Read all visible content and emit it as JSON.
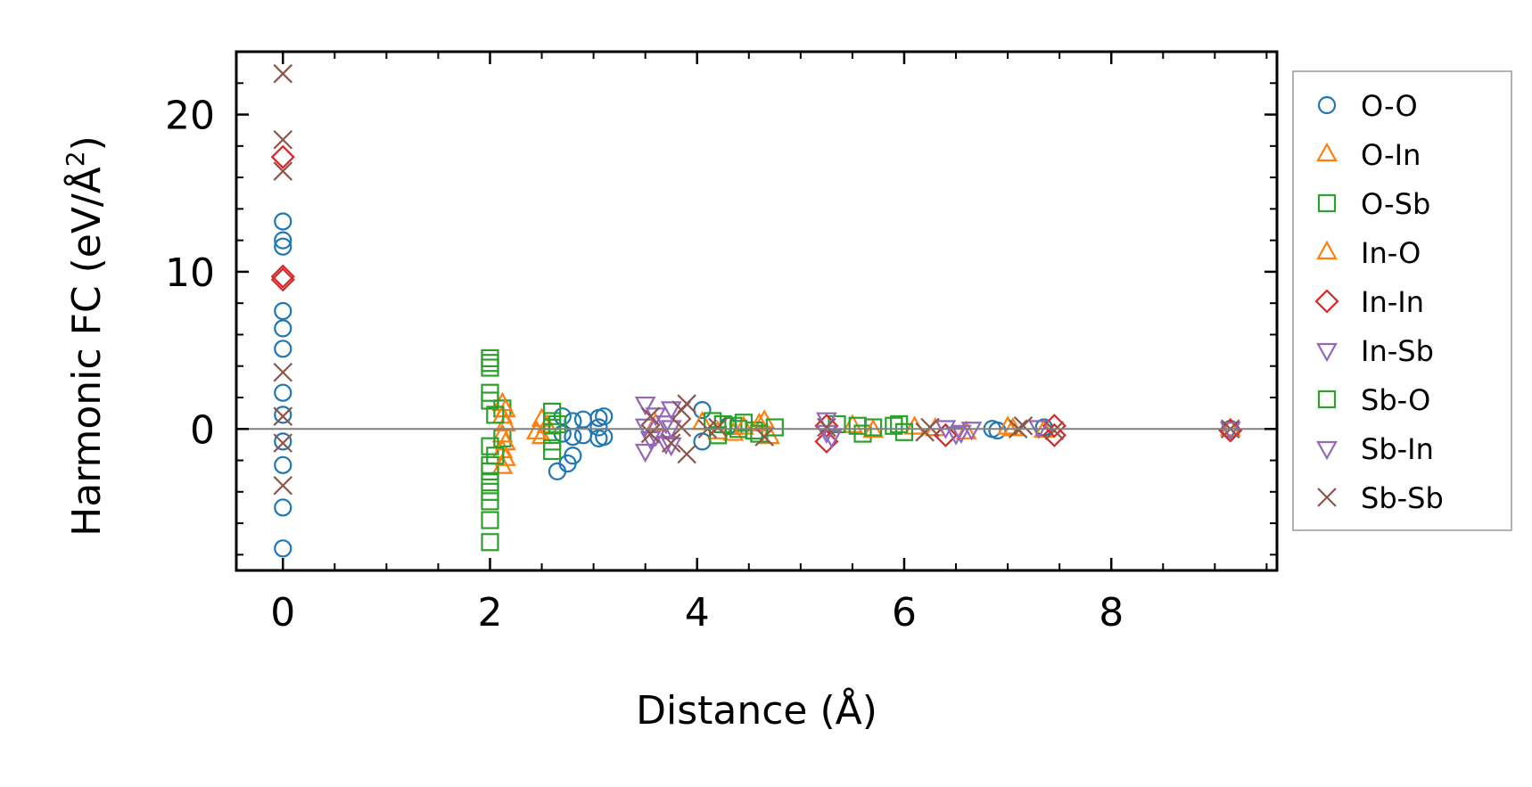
{
  "chart_data": {
    "type": "scatter",
    "xlabel": "Distance (Å)",
    "ylabel": "Harmonic FC (eV/Å",
    "ylabel_sup": "2",
    "ylabel_tail": ")",
    "xlim": [
      -0.45,
      9.6
    ],
    "ylim": [
      -9.0,
      24.0
    ],
    "xticks": [
      0,
      2,
      4,
      6,
      8
    ],
    "xtick_labels": [
      "0",
      "2",
      "4",
      "6",
      "8"
    ],
    "yticks": [
      0,
      10,
      20
    ],
    "ytick_labels": [
      "0",
      "10",
      "20"
    ],
    "zero_line": true,
    "grid": false,
    "legend_position": "right, outside",
    "series": [
      {
        "name": "O-O",
        "marker": "circle",
        "color": "#1f77b4",
        "points": [
          [
            0,
            13.2
          ],
          [
            0,
            12.0
          ],
          [
            0,
            11.6
          ],
          [
            0,
            7.5
          ],
          [
            0,
            6.4
          ],
          [
            0,
            5.1
          ],
          [
            0,
            2.3
          ],
          [
            0,
            0.9
          ],
          [
            0,
            -0.8
          ],
          [
            0,
            -2.3
          ],
          [
            0,
            -5.0
          ],
          [
            0,
            -7.6
          ],
          [
            2.7,
            0.8
          ],
          [
            2.7,
            -0.3
          ],
          [
            2.65,
            -2.7
          ],
          [
            2.8,
            0.5
          ],
          [
            2.8,
            -0.5
          ],
          [
            2.8,
            -1.7
          ],
          [
            2.75,
            -2.2
          ],
          [
            2.9,
            0.6
          ],
          [
            2.9,
            -0.4
          ],
          [
            3.05,
            0.7
          ],
          [
            3.05,
            0.1
          ],
          [
            3.05,
            -0.6
          ],
          [
            3.1,
            0.8
          ],
          [
            3.1,
            -0.5
          ],
          [
            4.05,
            1.2
          ],
          [
            4.05,
            -0.8
          ],
          [
            4.3,
            0.2
          ],
          [
            6.85,
            0.0
          ],
          [
            6.9,
            -0.1
          ],
          [
            7.35,
            0.1
          ],
          [
            9.15,
            0.0
          ]
        ]
      },
      {
        "name": "O-In",
        "marker": "triangle-up",
        "color": "#ff7f0e",
        "points": [
          [
            2.12,
            1.6
          ],
          [
            2.12,
            0.8
          ],
          [
            2.12,
            -0.4
          ],
          [
            2.12,
            -1.4
          ],
          [
            2.12,
            -2.4
          ],
          [
            2.5,
            0.6
          ],
          [
            2.5,
            -0.5
          ],
          [
            2.55,
            0.2
          ],
          [
            3.6,
            0.3
          ],
          [
            4.05,
            0.4
          ],
          [
            4.35,
            -0.3
          ],
          [
            4.65,
            0.5
          ],
          [
            4.7,
            -0.5
          ],
          [
            5.5,
            0.2
          ],
          [
            6.1,
            0.1
          ],
          [
            6.6,
            -0.2
          ],
          [
            7.0,
            0.1
          ],
          [
            7.35,
            -0.1
          ],
          [
            9.15,
            0.0
          ]
        ]
      },
      {
        "name": "O-Sb",
        "marker": "square",
        "color": "#2ca02c",
        "points": [
          [
            2.0,
            4.5
          ],
          [
            2.0,
            4.2
          ],
          [
            2.0,
            3.9
          ],
          [
            2.0,
            2.3
          ],
          [
            2.0,
            1.8
          ],
          [
            2.0,
            -1.1
          ],
          [
            2.0,
            -2.3
          ],
          [
            2.0,
            -2.7
          ],
          [
            2.0,
            -3.4
          ],
          [
            2.0,
            -4.0
          ],
          [
            2.0,
            -4.6
          ],
          [
            2.0,
            -5.8
          ],
          [
            2.0,
            -7.2
          ],
          [
            2.12,
            1.3
          ],
          [
            2.12,
            -0.6
          ],
          [
            2.6,
            1.1
          ],
          [
            2.6,
            0.5
          ],
          [
            2.6,
            -0.2
          ],
          [
            2.6,
            -0.8
          ],
          [
            2.6,
            -1.4
          ],
          [
            4.15,
            0.5
          ],
          [
            4.25,
            0.3
          ],
          [
            4.35,
            0.2
          ],
          [
            4.45,
            0.4
          ],
          [
            4.55,
            -0.1
          ],
          [
            4.75,
            0.1
          ],
          [
            5.35,
            0.3
          ],
          [
            5.55,
            0.2
          ],
          [
            5.6,
            -0.3
          ],
          [
            5.9,
            0.2
          ],
          [
            6.0,
            -0.2
          ]
        ]
      },
      {
        "name": "In-O",
        "marker": "triangle-up",
        "color": "#ff7f0e",
        "points": [
          [
            2.15,
            1.2
          ],
          [
            2.15,
            0.3
          ],
          [
            2.15,
            -0.9
          ],
          [
            2.15,
            -1.9
          ],
          [
            2.45,
            -0.2
          ],
          [
            4.2,
            -0.2
          ],
          [
            4.45,
            0.1
          ],
          [
            4.6,
            0.3
          ],
          [
            5.7,
            -0.1
          ],
          [
            6.3,
            0.0
          ],
          [
            7.05,
            0.0
          ]
        ]
      },
      {
        "name": "In-In",
        "marker": "diamond",
        "color": "#d62728",
        "points": [
          [
            0,
            17.3
          ],
          [
            0,
            9.7
          ],
          [
            0,
            9.5
          ],
          [
            5.25,
            -0.8
          ],
          [
            5.25,
            0.2
          ],
          [
            6.4,
            -0.4
          ],
          [
            7.45,
            0.2
          ],
          [
            7.45,
            -0.4
          ],
          [
            9.15,
            -0.1
          ]
        ]
      },
      {
        "name": "In-Sb",
        "marker": "triangle-down",
        "color": "#9467bd",
        "points": [
          [
            3.5,
            1.6
          ],
          [
            3.5,
            0.2
          ],
          [
            3.5,
            -1.4
          ],
          [
            3.6,
            0.9
          ],
          [
            3.6,
            -0.4
          ],
          [
            3.75,
            1.3
          ],
          [
            3.75,
            0.1
          ],
          [
            3.75,
            -1.0
          ],
          [
            5.25,
            0.6
          ],
          [
            5.25,
            -0.2
          ],
          [
            6.4,
            0.1
          ],
          [
            6.55,
            -0.2
          ],
          [
            6.65,
            0.0
          ],
          [
            9.15,
            0.0
          ]
        ]
      },
      {
        "name": "Sb-O",
        "marker": "square",
        "color": "#2ca02c",
        "points": [
          [
            2.05,
            0.9
          ],
          [
            2.05,
            -1.7
          ],
          [
            2.65,
            0.3
          ],
          [
            4.2,
            -0.4
          ],
          [
            4.4,
            0.0
          ],
          [
            4.6,
            -0.3
          ],
          [
            5.7,
            0.1
          ],
          [
            5.95,
            0.3
          ]
        ]
      },
      {
        "name": "Sb-In",
        "marker": "triangle-down",
        "color": "#9467bd",
        "points": [
          [
            3.55,
            -0.6
          ],
          [
            3.7,
            0.4
          ],
          [
            3.7,
            -0.9
          ],
          [
            5.3,
            -0.5
          ],
          [
            6.5,
            -0.3
          ],
          [
            7.3,
            0.1
          ]
        ]
      },
      {
        "name": "Sb-Sb",
        "marker": "x",
        "color": "#8c564b",
        "points": [
          [
            0,
            22.6
          ],
          [
            0,
            18.4
          ],
          [
            0,
            16.4
          ],
          [
            0,
            3.6
          ],
          [
            0,
            0.8
          ],
          [
            0,
            -0.9
          ],
          [
            0,
            -3.6
          ],
          [
            3.55,
            0.8
          ],
          [
            3.55,
            -0.3
          ],
          [
            3.75,
            -0.9
          ],
          [
            3.85,
            1.2
          ],
          [
            3.85,
            0.1
          ],
          [
            3.9,
            1.6
          ],
          [
            3.9,
            -1.6
          ],
          [
            4.1,
            0.0
          ],
          [
            4.2,
            0.1
          ],
          [
            4.65,
            -0.5
          ],
          [
            5.25,
            0.1
          ],
          [
            6.2,
            -0.2
          ],
          [
            6.25,
            0.1
          ],
          [
            7.1,
            0.0
          ],
          [
            7.15,
            0.2
          ],
          [
            7.45,
            -0.1
          ],
          [
            9.15,
            0.0
          ]
        ]
      }
    ]
  }
}
